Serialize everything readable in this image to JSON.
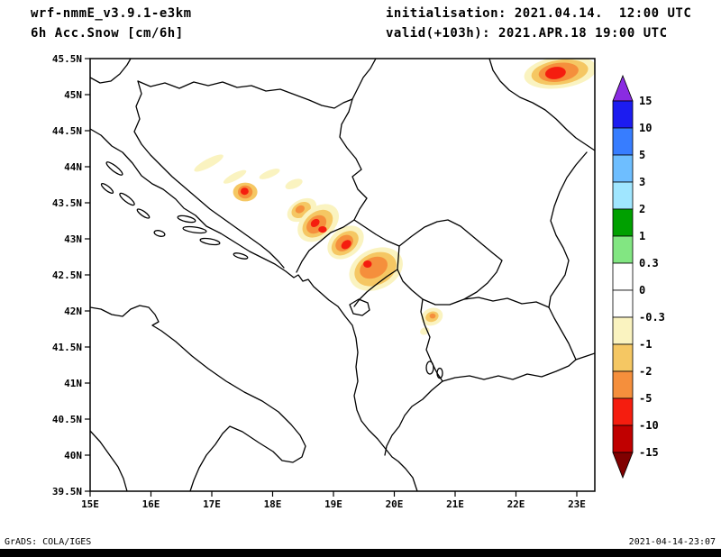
{
  "header": {
    "model_title": "wrf-nmmE_v3.9.1-e3km",
    "field_title": "6h Acc.Snow [cm/6h]",
    "init_text": "initialisation: 2021.04.14.  12:00 UTC",
    "valid_text": "valid(+103h): 2021.APR.18 19:00 UTC"
  },
  "footer": {
    "grads_credit": "GrADS: COLA/IGES",
    "timestamp": "2021-04-14-23:07"
  },
  "chart_data": {
    "type": "heatmap",
    "title": "6h Acc.Snow [cm/6h]",
    "model": "wrf-nmmE_v3.9.1-e3km",
    "initialisation": "2021.04.14. 12:00 UTC",
    "valid": "2021.APR.18 19:00 UTC",
    "lead_hours": 103,
    "units": "cm/6h",
    "lon_range": [
      15,
      23.3
    ],
    "lat_range": [
      39.5,
      45.5
    ],
    "x_ticks": [
      "15E",
      "16E",
      "17E",
      "18E",
      "19E",
      "20E",
      "21E",
      "22E",
      "23E"
    ],
    "y_ticks": [
      "45.5N",
      "45N",
      "44.5N",
      "44N",
      "43.5N",
      "43N",
      "42.5N",
      "42N",
      "41.5N",
      "41N",
      "40.5N",
      "40N",
      "39.5N"
    ],
    "colorbar": {
      "boundary_labels": [
        "15",
        "10",
        "5",
        "3",
        "2",
        "1",
        "0.3",
        "0",
        "-0.3",
        "-1",
        "-2",
        "-5",
        "-10",
        "-15"
      ],
      "segment_colors": [
        "#1c1cf0",
        "#377dff",
        "#6ebeff",
        "#a0e6ff",
        "#00a000",
        "#82e682",
        "#ffffff",
        "#ffffff",
        "#faf3c0",
        "#f5c763",
        "#f58f3c",
        "#f51d0f",
        "#c00000"
      ],
      "arrow_top_color": "#8a2be2",
      "arrow_bottom_color": "#800000"
    },
    "band_colors": {
      "cream": "#faf3c0",
      "sand": "#f5c763",
      "orange": "#f58f3c",
      "red": "#f51d0f"
    },
    "features": [
      {
        "name": "banat-maximum",
        "lon": 22.73,
        "lat": 45.31,
        "rx": 0.6,
        "ry": 0.22,
        "rot": -8,
        "band": "cream"
      },
      {
        "name": "banat-maximum",
        "lon": 22.72,
        "lat": 45.31,
        "rx": 0.47,
        "ry": 0.17,
        "rot": -8,
        "band": "sand"
      },
      {
        "name": "banat-maximum",
        "lon": 22.7,
        "lat": 45.31,
        "rx": 0.33,
        "ry": 0.13,
        "rot": -8,
        "band": "orange"
      },
      {
        "name": "banat-maximum",
        "lon": 22.65,
        "lat": 45.3,
        "rx": 0.17,
        "ry": 0.085,
        "rot": -8,
        "band": "red"
      },
      {
        "name": "bosnia-streak",
        "lon": 16.95,
        "lat": 44.05,
        "rx": 0.27,
        "ry": 0.06,
        "rot": -28,
        "band": "cream"
      },
      {
        "name": "bosnia-streak",
        "lon": 17.38,
        "lat": 43.86,
        "rx": 0.21,
        "ry": 0.05,
        "rot": -28,
        "band": "cream"
      },
      {
        "name": "bosnia-streak",
        "lon": 17.95,
        "lat": 43.9,
        "rx": 0.18,
        "ry": 0.05,
        "rot": -22,
        "band": "cream"
      },
      {
        "name": "bosnia-streak",
        "lon": 18.35,
        "lat": 43.76,
        "rx": 0.15,
        "ry": 0.06,
        "rot": -22,
        "band": "cream"
      },
      {
        "name": "herzegovina-spot",
        "lon": 17.55,
        "lat": 43.65,
        "rx": 0.2,
        "ry": 0.13,
        "rot": 0,
        "band": "sand"
      },
      {
        "name": "herzegovina-spot",
        "lon": 17.55,
        "lat": 43.65,
        "rx": 0.12,
        "ry": 0.09,
        "rot": 0,
        "band": "orange"
      },
      {
        "name": "herzegovina-spot",
        "lon": 17.54,
        "lat": 43.66,
        "rx": 0.065,
        "ry": 0.05,
        "rot": 0,
        "band": "red"
      },
      {
        "name": "sarajevo-patch",
        "lon": 18.48,
        "lat": 43.4,
        "rx": 0.26,
        "ry": 0.14,
        "rot": -30,
        "band": "cream"
      },
      {
        "name": "sarajevo-patch",
        "lon": 18.47,
        "lat": 43.4,
        "rx": 0.17,
        "ry": 0.1,
        "rot": -30,
        "band": "sand"
      },
      {
        "name": "sarajevo-patch",
        "lon": 18.45,
        "lat": 43.41,
        "rx": 0.08,
        "ry": 0.05,
        "rot": -30,
        "band": "orange"
      },
      {
        "name": "durmitor-blob",
        "lon": 18.75,
        "lat": 43.22,
        "rx": 0.38,
        "ry": 0.22,
        "rot": -38,
        "band": "cream"
      },
      {
        "name": "durmitor-blob",
        "lon": 18.74,
        "lat": 43.21,
        "rx": 0.28,
        "ry": 0.16,
        "rot": -38,
        "band": "sand"
      },
      {
        "name": "durmitor-blob",
        "lon": 18.72,
        "lat": 43.2,
        "rx": 0.18,
        "ry": 0.11,
        "rot": -38,
        "band": "orange"
      },
      {
        "name": "durmitor-blob",
        "lon": 18.7,
        "lat": 43.22,
        "rx": 0.08,
        "ry": 0.05,
        "rot": -38,
        "band": "red"
      },
      {
        "name": "durmitor-blob",
        "lon": 18.82,
        "lat": 43.13,
        "rx": 0.07,
        "ry": 0.045,
        "rot": 0,
        "band": "red"
      },
      {
        "name": "montenegro-blob",
        "lon": 19.2,
        "lat": 42.95,
        "rx": 0.33,
        "ry": 0.2,
        "rot": -38,
        "band": "cream"
      },
      {
        "name": "montenegro-blob",
        "lon": 19.19,
        "lat": 42.94,
        "rx": 0.25,
        "ry": 0.14,
        "rot": -38,
        "band": "sand"
      },
      {
        "name": "montenegro-blob",
        "lon": 19.18,
        "lat": 42.94,
        "rx": 0.16,
        "ry": 0.1,
        "rot": -38,
        "band": "orange"
      },
      {
        "name": "montenegro-blob",
        "lon": 19.21,
        "lat": 42.92,
        "rx": 0.09,
        "ry": 0.055,
        "rot": -38,
        "band": "red"
      },
      {
        "name": "prokletije-blob",
        "lon": 19.7,
        "lat": 42.58,
        "rx": 0.46,
        "ry": 0.28,
        "rot": -25,
        "band": "cream"
      },
      {
        "name": "prokletije-blob",
        "lon": 19.69,
        "lat": 42.58,
        "rx": 0.36,
        "ry": 0.22,
        "rot": -25,
        "band": "sand"
      },
      {
        "name": "prokletije-blob",
        "lon": 19.66,
        "lat": 42.6,
        "rx": 0.24,
        "ry": 0.14,
        "rot": -25,
        "band": "orange"
      },
      {
        "name": "prokletije-blob",
        "lon": 19.56,
        "lat": 42.65,
        "rx": 0.07,
        "ry": 0.05,
        "rot": 0,
        "band": "red"
      },
      {
        "name": "sar-planina-spot",
        "lon": 20.62,
        "lat": 41.92,
        "rx": 0.18,
        "ry": 0.12,
        "rot": -20,
        "band": "cream"
      },
      {
        "name": "sar-planina-spot",
        "lon": 20.62,
        "lat": 41.92,
        "rx": 0.11,
        "ry": 0.07,
        "rot": -20,
        "band": "sand"
      },
      {
        "name": "sar-planina-spot",
        "lon": 20.63,
        "lat": 41.93,
        "rx": 0.05,
        "ry": 0.035,
        "rot": 0,
        "band": "orange"
      },
      {
        "name": "sar-planina-spot",
        "lon": 20.5,
        "lat": 41.72,
        "rx": 0.08,
        "ry": 0.05,
        "rot": -20,
        "band": "cream"
      }
    ]
  }
}
